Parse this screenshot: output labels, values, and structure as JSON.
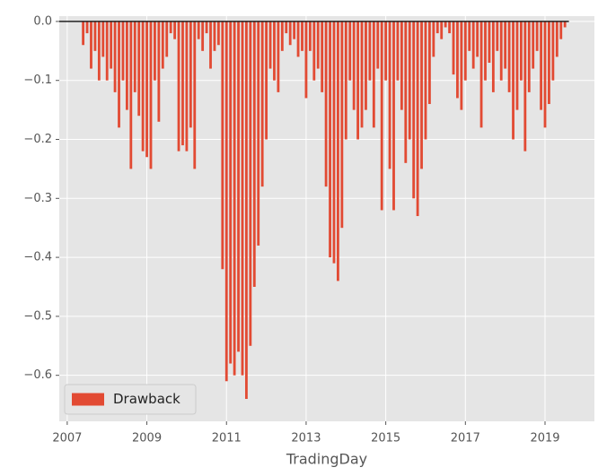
{
  "chart_data": {
    "type": "area",
    "xlabel": "TradingDay",
    "x": [
      2007.35,
      2007.4,
      2007.5,
      2007.6,
      2007.7,
      2007.8,
      2007.9,
      2008.0,
      2008.1,
      2008.2,
      2008.3,
      2008.4,
      2008.5,
      2008.6,
      2008.7,
      2008.8,
      2008.9,
      2009.0,
      2009.1,
      2009.2,
      2009.3,
      2009.4,
      2009.5,
      2009.6,
      2009.7,
      2009.8,
      2009.9,
      2010.0,
      2010.1,
      2010.2,
      2010.3,
      2010.4,
      2010.5,
      2010.6,
      2010.7,
      2010.8,
      2010.9,
      2011.0,
      2011.1,
      2011.2,
      2011.3,
      2011.4,
      2011.5,
      2011.6,
      2011.7,
      2011.8,
      2011.9,
      2012.0,
      2012.1,
      2012.2,
      2012.3,
      2012.4,
      2012.5,
      2012.6,
      2012.7,
      2012.8,
      2012.9,
      2013.0,
      2013.1,
      2013.2,
      2013.3,
      2013.4,
      2013.5,
      2013.6,
      2013.7,
      2013.8,
      2013.9,
      2014.0,
      2014.1,
      2014.2,
      2014.3,
      2014.4,
      2014.5,
      2014.6,
      2014.7,
      2014.8,
      2014.9,
      2015.0,
      2015.1,
      2015.2,
      2015.3,
      2015.4,
      2015.5,
      2015.6,
      2015.7,
      2015.8,
      2015.9,
      2016.0,
      2016.1,
      2016.2,
      2016.3,
      2016.4,
      2016.5,
      2016.6,
      2016.7,
      2016.8,
      2016.9,
      2017.0,
      2017.1,
      2017.2,
      2017.3,
      2017.4,
      2017.5,
      2017.6,
      2017.7,
      2017.8,
      2017.9,
      2018.0,
      2018.1,
      2018.2,
      2018.3,
      2018.4,
      2018.5,
      2018.6,
      2018.7,
      2018.8,
      2018.9,
      2019.0,
      2019.1,
      2019.2,
      2019.3,
      2019.4,
      2019.5,
      2019.6
    ],
    "series": [
      {
        "name": "Drawback",
        "color": "#E24A33",
        "values": [
          0,
          -0.04,
          -0.02,
          -0.08,
          -0.05,
          -0.1,
          -0.06,
          -0.1,
          -0.08,
          -0.12,
          -0.18,
          -0.1,
          -0.15,
          -0.25,
          -0.12,
          -0.16,
          -0.22,
          -0.23,
          -0.25,
          -0.1,
          -0.17,
          -0.08,
          -0.06,
          -0.02,
          -0.03,
          -0.22,
          -0.21,
          -0.22,
          -0.18,
          -0.25,
          -0.03,
          -0.05,
          -0.02,
          -0.08,
          -0.05,
          -0.04,
          -0.42,
          -0.61,
          -0.58,
          -0.6,
          -0.56,
          -0.6,
          -0.64,
          -0.55,
          -0.45,
          -0.38,
          -0.28,
          -0.2,
          -0.08,
          -0.1,
          -0.12,
          -0.05,
          -0.02,
          -0.04,
          -0.03,
          -0.06,
          -0.05,
          -0.13,
          -0.05,
          -0.1,
          -0.08,
          -0.12,
          -0.28,
          -0.4,
          -0.41,
          -0.44,
          -0.35,
          -0.2,
          -0.1,
          -0.15,
          -0.2,
          -0.18,
          -0.15,
          -0.1,
          -0.18,
          -0.08,
          -0.32,
          -0.1,
          -0.25,
          -0.32,
          -0.1,
          -0.15,
          -0.24,
          -0.2,
          -0.3,
          -0.33,
          -0.25,
          -0.2,
          -0.14,
          -0.06,
          -0.02,
          -0.03,
          -0.01,
          -0.02,
          -0.09,
          -0.13,
          -0.15,
          -0.1,
          -0.05,
          -0.08,
          -0.06,
          -0.18,
          -0.1,
          -0.07,
          -0.12,
          -0.05,
          -0.1,
          -0.08,
          -0.12,
          -0.2,
          -0.15,
          -0.1,
          -0.22,
          -0.12,
          -0.08,
          -0.05,
          -0.15,
          -0.18,
          -0.14,
          -0.1,
          -0.06,
          -0.03,
          -0.01,
          0
        ]
      }
    ],
    "xlim": [
      2006.8,
      2020.24
    ],
    "xticks": [
      2007,
      2009,
      2011,
      2013,
      2015,
      2017,
      2019
    ],
    "ylim": [
      -0.678,
      0.009
    ],
    "yticks": [
      {
        "value": 0,
        "label": "0.0"
      },
      {
        "value": -0.1,
        "label": "−0.1"
      },
      {
        "value": -0.2,
        "label": "−0.2"
      },
      {
        "value": -0.3,
        "label": "−0.3"
      },
      {
        "value": -0.4,
        "label": "−0.4"
      },
      {
        "value": -0.5,
        "label": "−0.5"
      },
      {
        "value": -0.6,
        "label": "−0.6"
      }
    ],
    "grid": true,
    "legend": "lower left"
  }
}
